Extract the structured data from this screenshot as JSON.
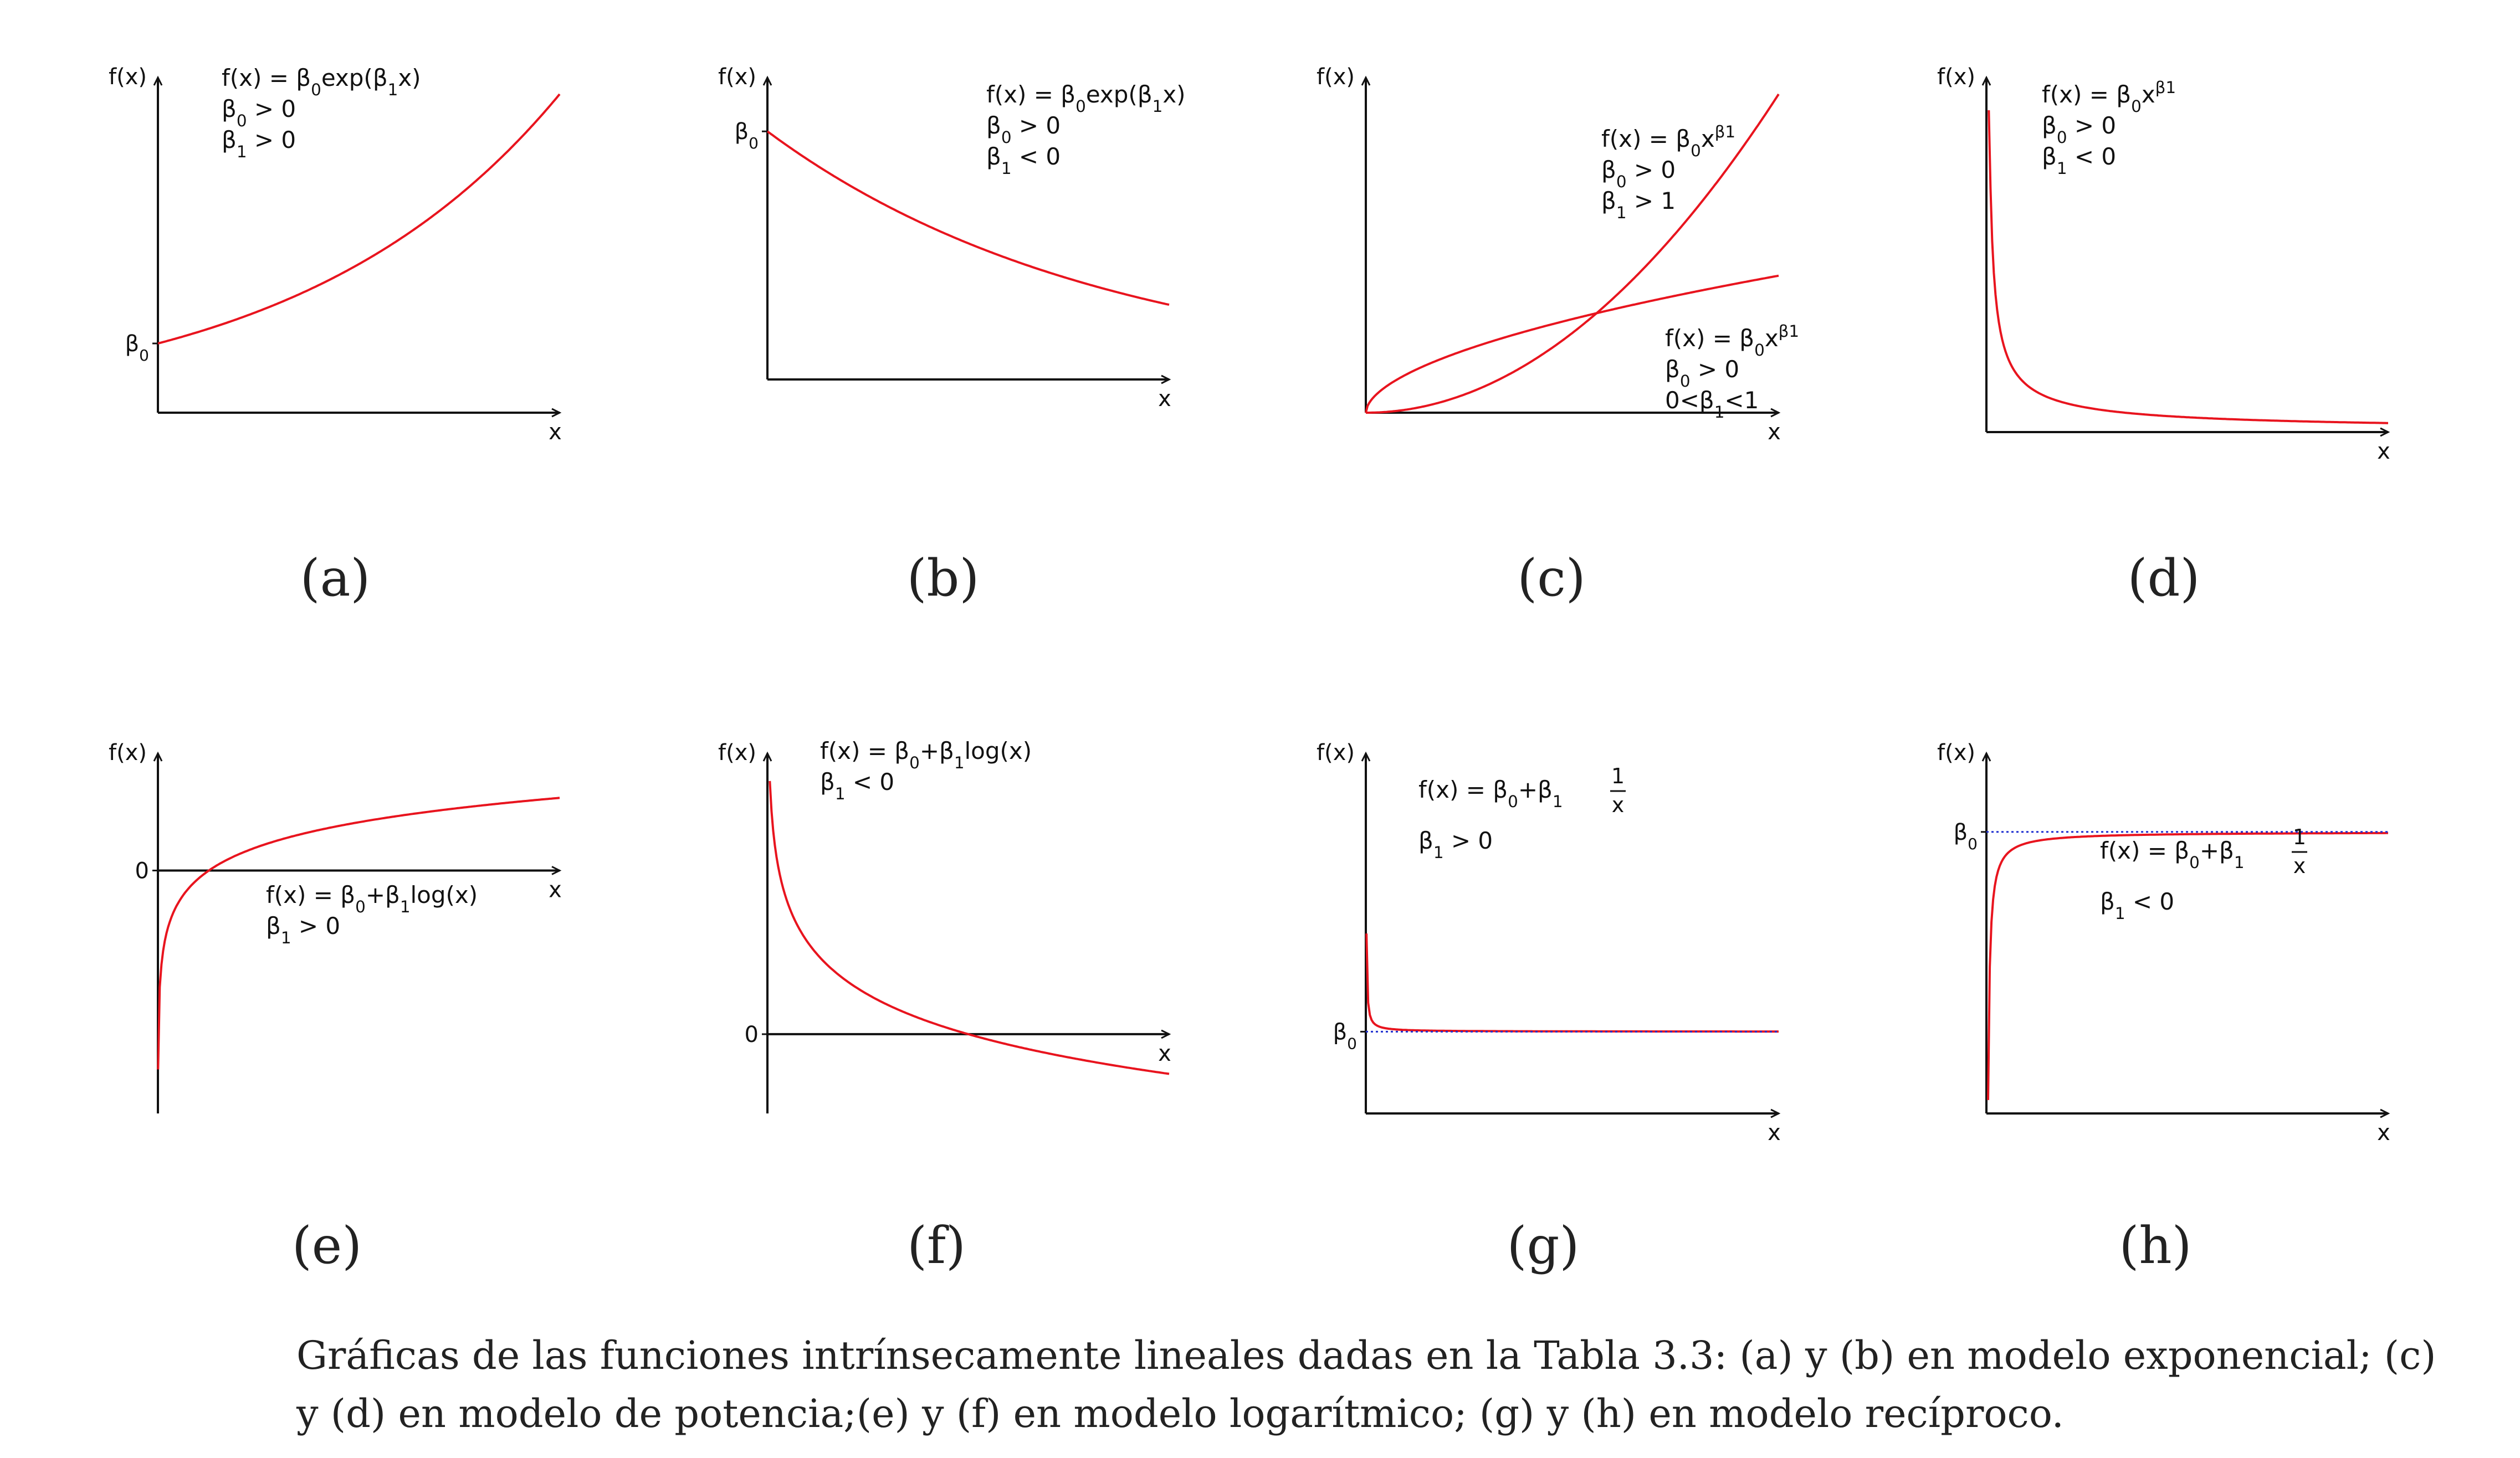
{
  "caption": "Gráficas de las funciones intrínsecamente lineales dadas en la Tabla 3.3: (a) y (b) en modelo exponencial; (c) y (d) en modelo de potencia;(e) y (f) en modelo logarítmico; (g) y (h) en modelo recíproco.",
  "colors": {
    "curve": "#e8141e",
    "axis": "#111111",
    "reference": "#1f2fd0"
  },
  "chart_data": [
    {
      "id": "a",
      "subcaption": "(a)",
      "type": "line",
      "ylabel": "f(x)",
      "xlabel": "x",
      "tick_labels": [
        {
          "axis": "y",
          "text": "β₀"
        }
      ],
      "annotations": [
        {
          "lines": [
            "f(x) = β₀exp(β₁x)",
            "β₀ > 0",
            "β₁ > 0"
          ]
        }
      ],
      "series": [
        {
          "x": [
            0,
            0.25,
            0.5,
            0.75,
            1
          ],
          "y": [
            1,
            1.5,
            2.2,
            3.2,
            4.6
          ]
        }
      ],
      "xlim": [
        0,
        1
      ],
      "ylim": [
        0,
        4.6
      ]
    },
    {
      "id": "b",
      "subcaption": "(b)",
      "type": "line",
      "ylabel": "f(x)",
      "xlabel": "x",
      "tick_labels": [
        {
          "axis": "y",
          "text": "β₀"
        }
      ],
      "annotations": [
        {
          "lines": [
            "f(x) = β₀exp(β₁x)",
            "β₀ > 0",
            "β₁ < 0"
          ]
        }
      ],
      "series": [
        {
          "x": [
            0,
            0.25,
            0.5,
            0.75,
            1
          ],
          "y": [
            1,
            0.8,
            0.63,
            0.5,
            0.3
          ]
        }
      ],
      "xlim": [
        0,
        1
      ],
      "ylim": [
        0,
        1.15
      ]
    },
    {
      "id": "c",
      "subcaption": "(c)",
      "type": "line",
      "ylabel": "f(x)",
      "xlabel": "x",
      "tick_labels": [],
      "annotations": [
        {
          "lines": [
            "f(x) = β₀x^β₁",
            "β₀ > 0",
            "β₁ > 1"
          ]
        },
        {
          "lines": [
            "f(x) = β₀x^β₁",
            "β₀ > 0",
            "0<β₁<1"
          ]
        }
      ],
      "series": [
        {
          "name": "β₁ > 1",
          "x": [
            0,
            0.25,
            0.5,
            0.75,
            1
          ],
          "y": [
            0,
            0.06,
            0.25,
            0.56,
            1
          ]
        },
        {
          "name": "0<β₁<1",
          "x": [
            0,
            0.25,
            0.5,
            0.75,
            1
          ],
          "y": [
            0,
            0.19,
            0.29,
            0.37,
            0.43
          ]
        }
      ],
      "xlim": [
        0,
        1
      ],
      "ylim": [
        0,
        1
      ]
    },
    {
      "id": "d",
      "subcaption": "(d)",
      "type": "line",
      "ylabel": "f(x)",
      "xlabel": "x",
      "tick_labels": [],
      "annotations": [
        {
          "lines": [
            "f(x) = β₀x^β₁",
            "β₀ > 0",
            "β₁ < 0"
          ]
        }
      ],
      "series": [
        {
          "x": [
            0.005,
            0.25,
            0.5,
            0.75,
            1
          ],
          "y": [
            1,
            0.18,
            0.12,
            0.08,
            0.03
          ]
        }
      ],
      "xlim": [
        0,
        1
      ],
      "ylim": [
        0,
        1.05
      ]
    },
    {
      "id": "e",
      "subcaption": "(e)",
      "type": "line",
      "ylabel": "f(x)",
      "xlabel": "x",
      "tick_labels": [
        {
          "axis": "y",
          "text": "0"
        }
      ],
      "annotations": [
        {
          "lines": [
            "f(x) = β₀+β₁log(x)",
            "β₁ > 0"
          ]
        }
      ],
      "series": [
        {
          "x": [
            0.003,
            0.1,
            0.5,
            1,
            2,
            2.7
          ],
          "y": [
            -2.9,
            -0.5,
            0.2,
            0.45,
            0.72,
            0.86
          ]
        }
      ],
      "xlim": [
        0,
        2.7
      ],
      "ylim": [
        -2.9,
        1.2
      ]
    },
    {
      "id": "f",
      "subcaption": "(f)",
      "type": "line",
      "ylabel": "f(x)",
      "xlabel": "x",
      "tick_labels": [
        {
          "axis": "y",
          "text": "0"
        }
      ],
      "annotations": [
        {
          "lines": [
            "f(x) = β₀+β₁log(x)",
            "β₁ < 0"
          ]
        }
      ],
      "series": [
        {
          "x": [
            0.02,
            0.25,
            0.5,
            1,
            1.5,
            2
          ],
          "y": [
            2.9,
            1,
            0.42,
            0,
            -0.28,
            -0.45
          ]
        }
      ],
      "xlim": [
        0,
        2
      ],
      "ylim": [
        -0.9,
        3
      ]
    },
    {
      "id": "g",
      "subcaption": "(g)",
      "type": "line",
      "ylabel": "f(x)",
      "xlabel": "x",
      "tick_labels": [
        {
          "axis": "y",
          "text": "β₀"
        }
      ],
      "annotations": [
        {
          "lines": [
            "f(x) = β₀+β₁",
            "β₁ > 0"
          ],
          "fraction": [
            "1",
            "x"
          ]
        }
      ],
      "series": [
        {
          "x": [
            0.01,
            0.05,
            0.1,
            0.5,
            1
          ],
          "y": [
            1.8,
            1.08,
            1.04,
            1.01,
            1.0
          ]
        }
      ],
      "reference_line": "β₀",
      "xlim": [
        0,
        1
      ],
      "ylim": [
        0,
        4.2
      ]
    },
    {
      "id": "h",
      "subcaption": "(h)",
      "type": "line",
      "ylabel": "f(x)",
      "xlabel": "x",
      "tick_labels": [
        {
          "axis": "y",
          "text": "β₀"
        }
      ],
      "annotations": [
        {
          "lines": [
            "f(x) = β₀+β₁",
            "β₁ < 0"
          ],
          "fraction": [
            "1",
            "x"
          ]
        }
      ],
      "series": [
        {
          "x": [
            0.004,
            0.02,
            0.05,
            0.2,
            0.5,
            1
          ],
          "y": [
            0,
            0.75,
            0.9,
            0.97,
            0.99,
            1.0
          ]
        }
      ],
      "reference_line": "β₀",
      "xlim": [
        0,
        1
      ],
      "ylim": [
        0,
        1.22
      ]
    }
  ]
}
